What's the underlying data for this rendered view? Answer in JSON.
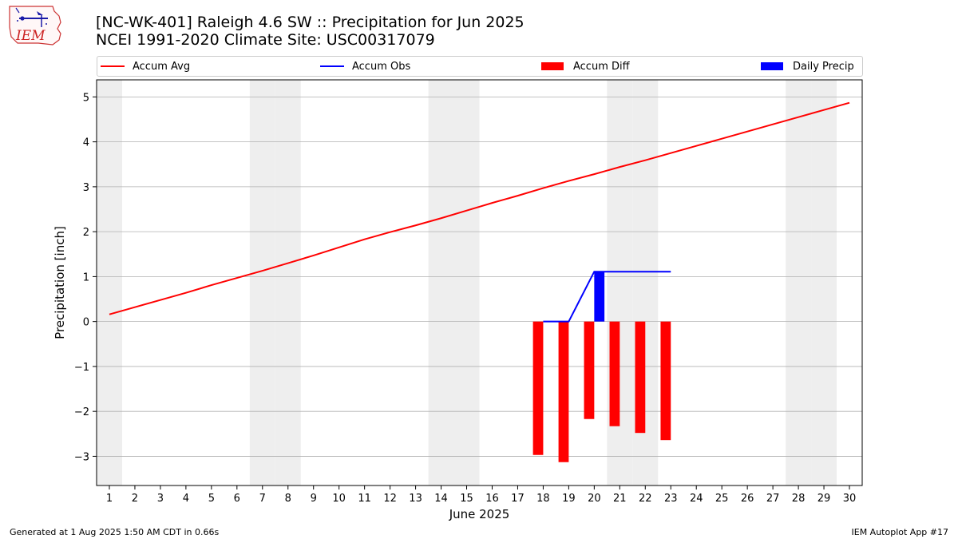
{
  "header": {
    "title_line1": "[NC-WK-401] Raleigh 4.6 SW :: Precipitation for Jun 2025",
    "title_line2": "NCEI 1991-2020 Climate Site: USC00317079",
    "logo_text": "IEM"
  },
  "legend": {
    "accum_avg": "Accum Avg",
    "accum_obs": "Accum Obs",
    "accum_diff": "Accum Diff",
    "daily_precip": "Daily Precip"
  },
  "footer": {
    "generated": "Generated at 1 Aug 2025 1:50 AM CDT in 0.66s",
    "app": "IEM Autoplot App #17"
  },
  "colors": {
    "avg": "#ff0000",
    "obs": "#0000ff",
    "diff": "#ff0000",
    "daily": "#0000ff",
    "weekend": "#eeeeee",
    "grid": "#b0b0b0"
  },
  "chart_data": {
    "type": "bar",
    "xlabel": "June 2025",
    "ylabel": "Precipitation [inch]",
    "xlim": [
      0.5,
      30.5
    ],
    "ylim": [
      -3.65,
      5.38
    ],
    "yticks": [
      -3,
      -2,
      -1,
      0,
      1,
      2,
      3,
      4,
      5
    ],
    "ytick_labels": [
      "−3",
      "−2",
      "−1",
      "0",
      "1",
      "2",
      "3",
      "4",
      "5"
    ],
    "x": [
      1,
      2,
      3,
      4,
      5,
      6,
      7,
      8,
      9,
      10,
      11,
      12,
      13,
      14,
      15,
      16,
      17,
      18,
      19,
      20,
      21,
      22,
      23,
      24,
      25,
      26,
      27,
      28,
      29,
      30
    ],
    "weekend_days": [
      1,
      7,
      8,
      14,
      15,
      21,
      22,
      28,
      29
    ],
    "grid": true,
    "legend_position": "top",
    "series": [
      {
        "name": "Accum Avg",
        "kind": "line",
        "x": [
          1,
          2,
          3,
          4,
          5,
          6,
          7,
          8,
          9,
          10,
          11,
          12,
          13,
          14,
          15,
          16,
          17,
          18,
          19,
          20,
          21,
          22,
          23,
          24,
          25,
          26,
          27,
          28,
          29,
          30
        ],
        "values": [
          0.16,
          0.32,
          0.48,
          0.64,
          0.81,
          0.97,
          1.13,
          1.3,
          1.47,
          1.65,
          1.83,
          1.99,
          2.14,
          2.3,
          2.47,
          2.64,
          2.8,
          2.97,
          3.13,
          3.28,
          3.44,
          3.59,
          3.75,
          3.91,
          4.07,
          4.23,
          4.39,
          4.55,
          4.71,
          4.87
        ]
      },
      {
        "name": "Accum Obs",
        "kind": "line",
        "x": [
          18,
          19,
          20,
          21,
          22,
          23
        ],
        "values": [
          0.0,
          0.0,
          1.11,
          1.11,
          1.11,
          1.11
        ]
      },
      {
        "name": "Accum Diff",
        "kind": "bar",
        "x": [
          18,
          19,
          20,
          21,
          22,
          23
        ],
        "values": [
          -2.97,
          -3.13,
          -2.17,
          -2.33,
          -2.48,
          -2.64
        ]
      },
      {
        "name": "Daily Precip",
        "kind": "bar",
        "x": [
          18,
          19,
          20,
          21,
          22,
          23
        ],
        "values": [
          0.0,
          0.0,
          1.11,
          0.0,
          0.0,
          0.0
        ]
      }
    ]
  }
}
